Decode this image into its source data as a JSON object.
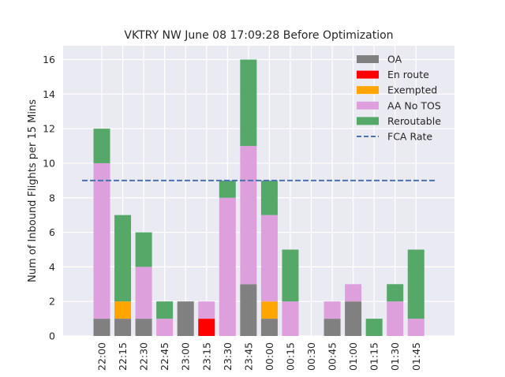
{
  "chart_data": {
    "type": "bar",
    "stacked": true,
    "title": "VKTRY NW June 08 17:09:28 Before Optimization",
    "xlabel": "",
    "ylabel": "Num of Inbound Flights per 15 Mins",
    "categories": [
      "22:00",
      "22:15",
      "22:30",
      "22:45",
      "23:00",
      "23:15",
      "23:30",
      "23:45",
      "00:00",
      "00:15",
      "00:30",
      "00:45",
      "01:00",
      "01:15",
      "01:30",
      "01:45"
    ],
    "yticks": [
      0,
      2,
      4,
      6,
      8,
      10,
      12,
      14,
      16
    ],
    "ylim": [
      0,
      16.8
    ],
    "grid": true,
    "legend_position": "top-right",
    "series": [
      {
        "name": "OA",
        "color": "#808080",
        "values": [
          1,
          1,
          1,
          0,
          2,
          0,
          0,
          3,
          1,
          0,
          0,
          1,
          2,
          0,
          0,
          0
        ]
      },
      {
        "name": "En route",
        "color": "#ff0000",
        "values": [
          0,
          0,
          0,
          0,
          0,
          1,
          0,
          0,
          0,
          0,
          0,
          0,
          0,
          0,
          0,
          0
        ]
      },
      {
        "name": "Exempted",
        "color": "#ffa500",
        "values": [
          0,
          1,
          0,
          0,
          0,
          0,
          0,
          0,
          1,
          0,
          0,
          0,
          0,
          0,
          0,
          0
        ]
      },
      {
        "name": "AA No TOS",
        "color": "#dda0dd",
        "values": [
          9,
          0,
          3,
          1,
          0,
          1,
          8,
          8,
          5,
          2,
          0,
          1,
          1,
          0,
          2,
          1
        ]
      },
      {
        "name": "Reroutable",
        "color": "#55a868",
        "values": [
          2,
          5,
          2,
          1,
          0,
          0,
          1,
          5,
          2,
          3,
          0,
          0,
          0,
          1,
          1,
          4
        ]
      }
    ],
    "reference_line": {
      "name": "FCA Rate",
      "value": 9,
      "color": "#4c72b0",
      "style": "dashed"
    }
  }
}
